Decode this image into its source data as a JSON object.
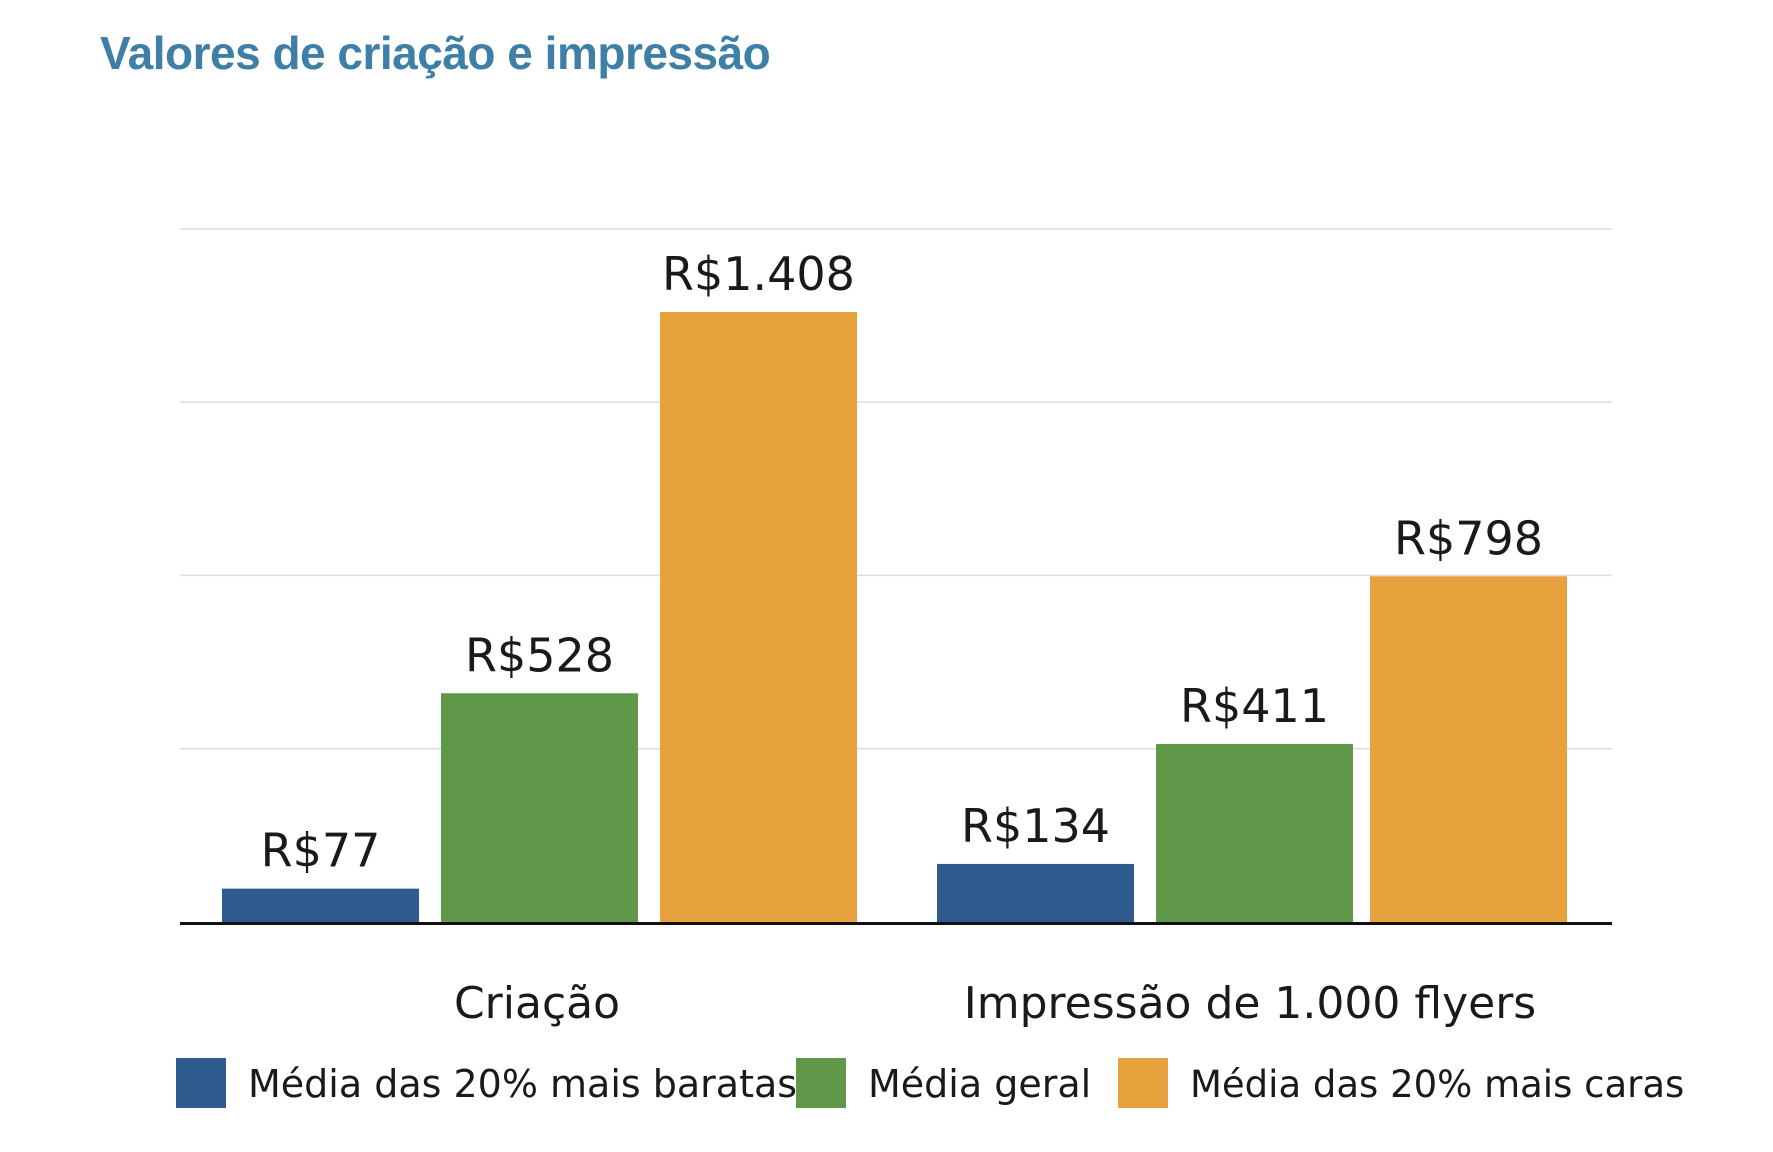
{
  "chart_data": {
    "type": "bar",
    "title": "Valores de criação e impressão",
    "categories": [
      "Criação",
      "Impressão de 1.000 flyers"
    ],
    "series": [
      {
        "name": "Média das 20% mais baratas",
        "values": [
          77,
          134
        ],
        "labels": [
          "R$77",
          "R$134"
        ],
        "color": "#2e5a8e"
      },
      {
        "name": "Média geral",
        "values": [
          528,
          411
        ],
        "labels": [
          "R$528",
          "R$411"
        ],
        "color": "#5f9849"
      },
      {
        "name": "Média das 20% mais caras",
        "values": [
          1408,
          798
        ],
        "labels": [
          "R$1.408",
          "R$798"
        ],
        "color": "#e8a23d"
      }
    ],
    "xlabel": "",
    "ylabel": "",
    "ylim": [
      0,
      1600
    ],
    "grid": true,
    "legend": "bottom",
    "colors": {
      "title": "#3d7fa6",
      "grid": "#dcdcdc",
      "axis": "#111111"
    }
  }
}
